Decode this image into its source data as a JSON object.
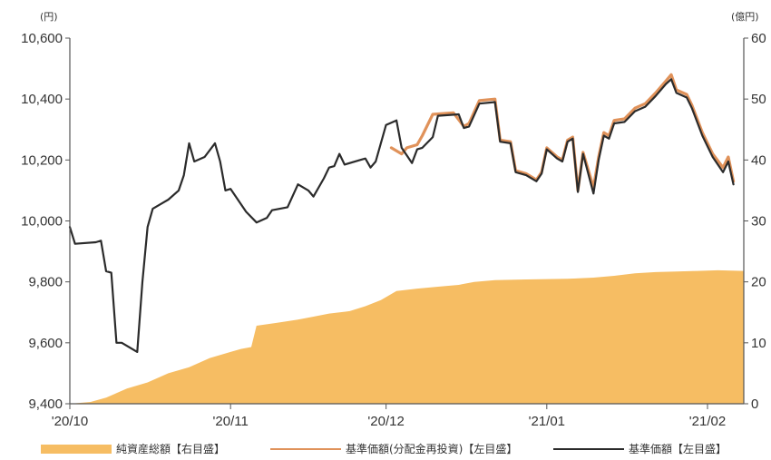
{
  "chart_data": {
    "type": "line",
    "left_unit": "(円)",
    "right_unit": "(億円)",
    "left_axis": {
      "min": 9400,
      "max": 10600,
      "ticks": [
        "9,400",
        "9,600",
        "9,800",
        "10,000",
        "10,200",
        "10,400",
        "10,600"
      ]
    },
    "right_axis": {
      "min": 0,
      "max": 60,
      "ticks": [
        "0",
        "10",
        "20",
        "30",
        "40",
        "50",
        "60"
      ]
    },
    "x_ticks": [
      "'20/10",
      "'20/11",
      "'20/12",
      "'21/01",
      "'21/02"
    ],
    "x_tick_dates": [
      "2020-10-01",
      "2020-11-01",
      "2020-12-01",
      "2021-01-01",
      "2021-02-01"
    ],
    "x_range": [
      "2020-10-01",
      "2021-02-08"
    ],
    "legend": {
      "net_assets": "純資産総額【右目盛】",
      "nav_reinvested": "基準価額(分配金再投資)【左目盛】",
      "nav": "基準価額【左目盛】"
    },
    "colors": {
      "net_assets": "#f6bd63",
      "nav_reinvested": "#e0925a",
      "nav": "#2b2b2b"
    },
    "series": [
      {
        "key": "net_assets",
        "axis": "right",
        "kind": "area",
        "points": [
          [
            "2020-10-01",
            0
          ],
          [
            "2020-10-05",
            0.3
          ],
          [
            "2020-10-08",
            1.0
          ],
          [
            "2020-10-12",
            2.5
          ],
          [
            "2020-10-16",
            3.5
          ],
          [
            "2020-10-20",
            5.0
          ],
          [
            "2020-10-24",
            6.0
          ],
          [
            "2020-10-28",
            7.5
          ],
          [
            "2020-11-01",
            8.5
          ],
          [
            "2020-11-03",
            9.0
          ],
          [
            "2020-11-05",
            9.3
          ],
          [
            "2020-11-06",
            12.8
          ],
          [
            "2020-11-10",
            13.3
          ],
          [
            "2020-11-14",
            13.8
          ],
          [
            "2020-11-17",
            14.3
          ],
          [
            "2020-11-20",
            14.8
          ],
          [
            "2020-11-24",
            15.2
          ],
          [
            "2020-11-27",
            16.0
          ],
          [
            "2020-11-30",
            17.0
          ],
          [
            "2020-12-03",
            18.5
          ],
          [
            "2020-12-07",
            18.9
          ],
          [
            "2020-12-11",
            19.2
          ],
          [
            "2020-12-15",
            19.5
          ],
          [
            "2020-12-18",
            20.0
          ],
          [
            "2020-12-22",
            20.3
          ],
          [
            "2020-12-28",
            20.4
          ],
          [
            "2021-01-05",
            20.5
          ],
          [
            "2021-01-10",
            20.7
          ],
          [
            "2021-01-14",
            21.0
          ],
          [
            "2021-01-18",
            21.4
          ],
          [
            "2021-01-22",
            21.6
          ],
          [
            "2021-01-26",
            21.7
          ],
          [
            "2021-01-30",
            21.8
          ],
          [
            "2021-02-03",
            21.9
          ],
          [
            "2021-02-08",
            21.8
          ]
        ]
      },
      {
        "key": "nav_reinvested",
        "axis": "left",
        "kind": "line",
        "points": [
          [
            "2020-12-02",
            10240
          ],
          [
            "2020-12-04",
            10220
          ],
          [
            "2020-12-05",
            10240
          ],
          [
            "2020-12-07",
            10250
          ],
          [
            "2020-12-08",
            10280
          ],
          [
            "2020-12-10",
            10350
          ],
          [
            "2020-12-14",
            10355
          ],
          [
            "2020-12-16",
            10310
          ],
          [
            "2020-12-17",
            10320
          ],
          [
            "2020-12-19",
            10395
          ],
          [
            "2020-12-22",
            10400
          ],
          [
            "2020-12-23",
            10265
          ],
          [
            "2020-12-25",
            10260
          ],
          [
            "2020-12-26",
            10165
          ],
          [
            "2020-12-28",
            10155
          ],
          [
            "2020-12-30",
            10135
          ],
          [
            "2020-12-31",
            10160
          ],
          [
            "2021-01-01",
            10240
          ],
          [
            "2021-01-03",
            10210
          ],
          [
            "2021-01-04",
            10200
          ],
          [
            "2021-01-05",
            10265
          ],
          [
            "2021-01-06",
            10275
          ],
          [
            "2021-01-07",
            10100
          ],
          [
            "2021-01-08",
            10225
          ],
          [
            "2021-01-10",
            10110
          ],
          [
            "2021-01-11",
            10210
          ],
          [
            "2021-01-12",
            10290
          ],
          [
            "2021-01-13",
            10280
          ],
          [
            "2021-01-14",
            10330
          ],
          [
            "2021-01-16",
            10335
          ],
          [
            "2021-01-18",
            10370
          ],
          [
            "2021-01-20",
            10385
          ],
          [
            "2021-01-22",
            10420
          ],
          [
            "2021-01-24",
            10460
          ],
          [
            "2021-01-25",
            10480
          ],
          [
            "2021-01-26",
            10430
          ],
          [
            "2021-01-28",
            10415
          ],
          [
            "2021-01-29",
            10380
          ],
          [
            "2021-01-31",
            10290
          ],
          [
            "2021-02-02",
            10220
          ],
          [
            "2021-02-04",
            10175
          ],
          [
            "2021-02-05",
            10210
          ],
          [
            "2021-02-06",
            10130
          ]
        ]
      },
      {
        "key": "nav",
        "axis": "left",
        "kind": "line",
        "points": [
          [
            "2020-10-01",
            9980
          ],
          [
            "2020-10-02",
            9925
          ],
          [
            "2020-10-06",
            9930
          ],
          [
            "2020-10-07",
            9935
          ],
          [
            "2020-10-08",
            9835
          ],
          [
            "2020-10-09",
            9830
          ],
          [
            "2020-10-10",
            9600
          ],
          [
            "2020-10-11",
            9600
          ],
          [
            "2020-10-14",
            9570
          ],
          [
            "2020-10-15",
            9800
          ],
          [
            "2020-10-16",
            9980
          ],
          [
            "2020-10-17",
            10040
          ],
          [
            "2020-10-19",
            10060
          ],
          [
            "2020-10-20",
            10070
          ],
          [
            "2020-10-22",
            10100
          ],
          [
            "2020-10-23",
            10150
          ],
          [
            "2020-10-24",
            10255
          ],
          [
            "2020-10-25",
            10195
          ],
          [
            "2020-10-27",
            10210
          ],
          [
            "2020-10-29",
            10255
          ],
          [
            "2020-10-30",
            10195
          ],
          [
            "2020-10-31",
            10100
          ],
          [
            "2020-11-01",
            10105
          ],
          [
            "2020-11-04",
            10030
          ],
          [
            "2020-11-06",
            9995
          ],
          [
            "2020-11-08",
            10010
          ],
          [
            "2020-11-09",
            10035
          ],
          [
            "2020-11-12",
            10045
          ],
          [
            "2020-11-14",
            10120
          ],
          [
            "2020-11-16",
            10100
          ],
          [
            "2020-11-17",
            10080
          ],
          [
            "2020-11-19",
            10140
          ],
          [
            "2020-11-20",
            10175
          ],
          [
            "2020-11-21",
            10180
          ],
          [
            "2020-11-22",
            10220
          ],
          [
            "2020-11-23",
            10185
          ],
          [
            "2020-11-26",
            10200
          ],
          [
            "2020-11-27",
            10205
          ],
          [
            "2020-11-28",
            10175
          ],
          [
            "2020-11-29",
            10195
          ],
          [
            "2020-12-01",
            10315
          ],
          [
            "2020-12-03",
            10330
          ],
          [
            "2020-12-04",
            10240
          ],
          [
            "2020-12-05",
            10215
          ],
          [
            "2020-12-06",
            10190
          ],
          [
            "2020-12-07",
            10235
          ],
          [
            "2020-12-08",
            10240
          ],
          [
            "2020-12-10",
            10275
          ],
          [
            "2020-12-11",
            10345
          ],
          [
            "2020-12-15",
            10350
          ],
          [
            "2020-12-16",
            10305
          ],
          [
            "2020-12-17",
            10310
          ],
          [
            "2020-12-19",
            10385
          ],
          [
            "2020-12-22",
            10390
          ],
          [
            "2020-12-23",
            10260
          ],
          [
            "2020-12-25",
            10255
          ],
          [
            "2020-12-26",
            10160
          ],
          [
            "2020-12-28",
            10150
          ],
          [
            "2020-12-30",
            10130
          ],
          [
            "2020-12-31",
            10155
          ],
          [
            "2021-01-01",
            10235
          ],
          [
            "2021-01-03",
            10205
          ],
          [
            "2021-01-04",
            10195
          ],
          [
            "2021-01-05",
            10260
          ],
          [
            "2021-01-06",
            10270
          ],
          [
            "2021-01-07",
            10095
          ],
          [
            "2021-01-08",
            10220
          ],
          [
            "2021-01-10",
            10090
          ],
          [
            "2021-01-11",
            10200
          ],
          [
            "2021-01-12",
            10280
          ],
          [
            "2021-01-13",
            10270
          ],
          [
            "2021-01-14",
            10320
          ],
          [
            "2021-01-16",
            10325
          ],
          [
            "2021-01-18",
            10360
          ],
          [
            "2021-01-20",
            10375
          ],
          [
            "2021-01-22",
            10410
          ],
          [
            "2021-01-24",
            10450
          ],
          [
            "2021-01-25",
            10465
          ],
          [
            "2021-01-26",
            10420
          ],
          [
            "2021-01-28",
            10405
          ],
          [
            "2021-01-29",
            10370
          ],
          [
            "2021-01-31",
            10280
          ],
          [
            "2021-02-02",
            10210
          ],
          [
            "2021-02-04",
            10160
          ],
          [
            "2021-02-05",
            10195
          ],
          [
            "2021-02-06",
            10120
          ]
        ]
      }
    ]
  }
}
